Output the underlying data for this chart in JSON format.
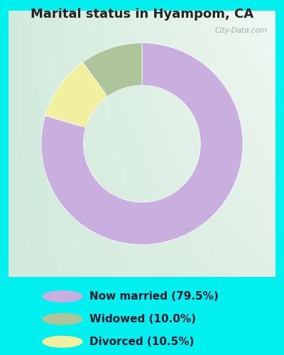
{
  "title": "Marital status in Hyampom, CA",
  "slices": [
    79.5,
    10.0,
    10.5
  ],
  "labels": [
    "Now married (79.5%)",
    "Widowed (10.0%)",
    "Divorced (10.5%)"
  ],
  "colors": [
    "#c9aee0",
    "#aec49a",
    "#f0f0a0"
  ],
  "outer_bg": "#00f0f0",
  "chart_bg_tl": "#d8ede4",
  "chart_bg_tr": "#eef5f0",
  "chart_bg_bl": "#d0e8d8",
  "chart_bg_br": "#e8f2e8",
  "title_color": "#222222",
  "title_fontsize": 13,
  "legend_fontsize": 11,
  "watermark": "City-Data.com",
  "donut_width": 0.42,
  "start_angle": 90
}
